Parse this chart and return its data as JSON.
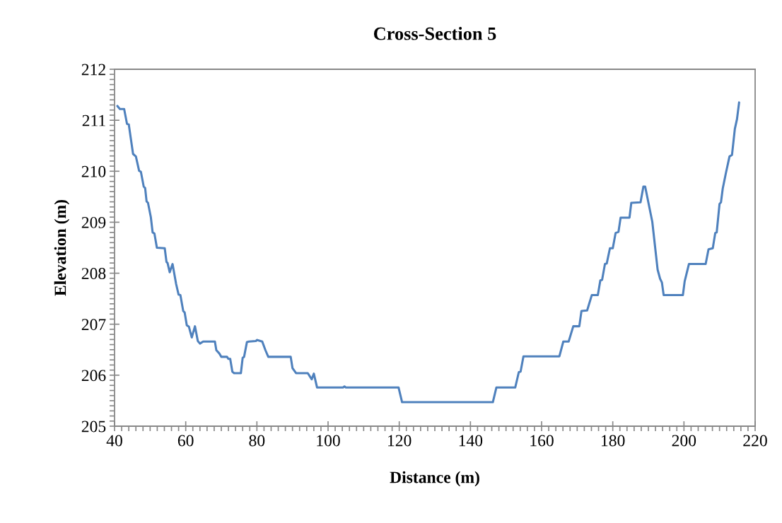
{
  "chart_data": {
    "type": "line",
    "title": "Cross-Section 5",
    "xlabel": "Distance (m)",
    "ylabel": "Elevation (m)",
    "xlim": [
      40,
      220
    ],
    "xticks": [
      40,
      60,
      80,
      100,
      120,
      140,
      160,
      180,
      200,
      220
    ],
    "ylim": [
      205,
      212
    ],
    "yticks": [
      205,
      206,
      207,
      208,
      209,
      210,
      211,
      212
    ],
    "marker": "none",
    "line_style": "solid",
    "series": [
      {
        "color": "#4f81bd",
        "x": [
          40.8,
          41.5,
          42.7,
          43.5,
          44.0,
          45.2,
          46.0,
          46.9,
          47.4,
          48.2,
          48.6,
          49.0,
          49.4,
          50.2,
          50.7,
          51.2,
          51.9,
          54.1,
          54.6,
          54.9,
          55.5,
          56.3,
          57.3,
          58.0,
          58.5,
          59.3,
          59.7,
          60.3,
          60.9,
          61.7,
          62.6,
          63.4,
          64.0,
          64.9,
          68.2,
          68.6,
          69.4,
          70.0,
          71.6,
          72.0,
          72.5,
          73.1,
          73.6,
          75.5,
          76.0,
          76.4,
          77.2,
          77.8,
          79.7,
          80.0,
          81.5,
          82.4,
          83.2,
          89.5,
          90.0,
          91.0,
          94.3,
          95.4,
          96.0,
          96.9,
          104.2,
          104.6,
          105.0,
          119.8,
          120.8,
          146.3,
          147.3,
          152.6,
          153.6,
          154.1,
          154.9,
          165.0,
          166.1,
          167.6,
          168.9,
          170.6,
          171.2,
          172.8,
          174.1,
          175.8,
          176.5,
          177.0,
          177.8,
          178.3,
          179.2,
          180.0,
          180.8,
          181.6,
          182.2,
          184.7,
          185.2,
          187.8,
          188.6,
          189.1,
          191.1,
          192.6,
          193.3,
          193.8,
          194.3,
          199.7,
          200.2,
          201.4,
          206.1,
          206.9,
          208.1,
          208.8,
          209.2,
          210.0,
          210.4,
          210.9,
          211.8,
          212.8,
          213.5,
          214.3,
          214.9,
          215.5
        ],
        "values": [
          211.28,
          211.22,
          211.22,
          210.93,
          210.92,
          210.34,
          210.29,
          210.01,
          209.99,
          209.7,
          209.67,
          209.41,
          209.38,
          209.1,
          208.8,
          208.78,
          208.5,
          208.49,
          208.22,
          208.2,
          208.02,
          208.18,
          207.79,
          207.58,
          207.57,
          207.26,
          207.23,
          206.98,
          206.95,
          206.74,
          206.96,
          206.67,
          206.62,
          206.66,
          206.66,
          206.49,
          206.43,
          206.36,
          206.36,
          206.32,
          206.32,
          206.07,
          206.04,
          206.04,
          206.34,
          206.36,
          206.65,
          206.66,
          206.67,
          206.69,
          206.66,
          206.49,
          206.36,
          206.36,
          206.14,
          206.04,
          206.04,
          205.92,
          206.03,
          205.76,
          205.76,
          205.78,
          205.76,
          205.76,
          205.47,
          205.47,
          205.76,
          205.76,
          206.06,
          206.07,
          206.37,
          206.37,
          206.66,
          206.66,
          206.96,
          206.96,
          207.26,
          207.27,
          207.57,
          207.57,
          207.86,
          207.87,
          208.18,
          208.19,
          208.49,
          208.49,
          208.79,
          208.81,
          209.09,
          209.09,
          209.38,
          209.39,
          209.7,
          209.7,
          209.01,
          208.07,
          207.89,
          207.82,
          207.57,
          207.57,
          207.84,
          208.18,
          208.18,
          208.47,
          208.49,
          208.79,
          208.8,
          209.36,
          209.39,
          209.66,
          209.97,
          210.29,
          210.32,
          210.83,
          211.02,
          211.35
        ]
      }
    ]
  }
}
